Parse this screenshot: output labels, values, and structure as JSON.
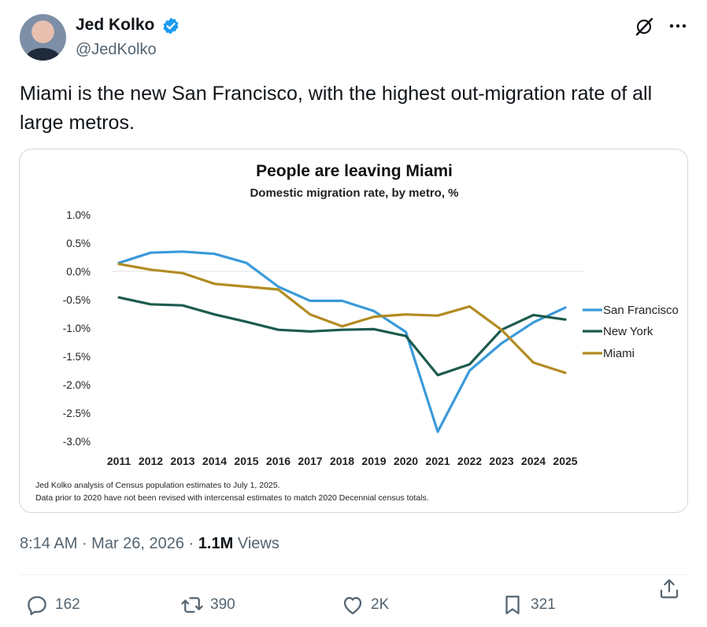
{
  "author": {
    "name": "Jed Kolko",
    "handle": "@JedKolko"
  },
  "tweet": {
    "text": "Miami is the new San Francisco, with the highest out-migration rate of all large metros."
  },
  "meta": {
    "time": "8:14 AM",
    "sep1": " · ",
    "date": "Mar 26, 2026",
    "sep2": " · ",
    "views_count": "1.1M",
    "views_label": " Views"
  },
  "actions": {
    "replies": "162",
    "reposts": "390",
    "likes": "2K",
    "bookmarks": "321"
  },
  "colors": {
    "san_francisco": "#3a9ad9",
    "new_york": "#1c5b4d",
    "miami": "#b38b22",
    "verified": "#1d9bf0"
  },
  "chart_data": {
    "type": "line",
    "title": "People are leaving Miami",
    "subtitle": "Domestic migration rate, by metro, %",
    "x": [
      2011,
      2012,
      2013,
      2014,
      2015,
      2016,
      2017,
      2018,
      2019,
      2020,
      2021,
      2022,
      2023,
      2024,
      2025
    ],
    "x_labels": [
      "2011",
      "2012",
      "2013",
      "2014",
      "2015",
      "2016",
      "2017",
      "2018",
      "2019",
      "2020",
      "2021",
      "2022",
      "2023",
      "2024",
      "2025"
    ],
    "y_ticks": [
      1.0,
      0.5,
      0.0,
      -0.5,
      -1.0,
      -1.5,
      -2.0,
      -2.5,
      -3.0
    ],
    "y_tick_labels": [
      "1.0%",
      "0.5%",
      "0.0%",
      "-0.5%",
      "-1.0%",
      "-1.5%",
      "-2.0%",
      "-2.5%",
      "-3.0%"
    ],
    "ylim": [
      -3.0,
      1.0
    ],
    "series": [
      {
        "name": "San Francisco",
        "color": "#3a9ad9",
        "values": [
          0.15,
          0.33,
          0.35,
          0.31,
          0.15,
          -0.27,
          -0.52,
          -0.52,
          -0.7,
          -1.07,
          -2.83,
          -1.75,
          -1.27,
          -0.9,
          -0.64
        ]
      },
      {
        "name": "New York",
        "color": "#1c5b4d",
        "values": [
          -0.46,
          -0.58,
          -0.6,
          -0.76,
          -0.89,
          -1.03,
          -1.06,
          -1.03,
          -1.02,
          -1.14,
          -1.83,
          -1.64,
          -1.03,
          -0.77,
          -0.85
        ]
      },
      {
        "name": "Miami",
        "color": "#b38b22",
        "values": [
          0.13,
          0.03,
          -0.03,
          -0.22,
          -0.27,
          -0.32,
          -0.76,
          -0.97,
          -0.8,
          -0.76,
          -0.78,
          -0.62,
          -1.03,
          -1.61,
          -1.79
        ]
      }
    ],
    "legend_position": "right",
    "notes": [
      "Jed Kolko analysis of Census population estimates to July 1, 2025.",
      "Data prior to 2020 have not been revised with intercensal estimates to match 2020 Decennial census totals."
    ]
  }
}
